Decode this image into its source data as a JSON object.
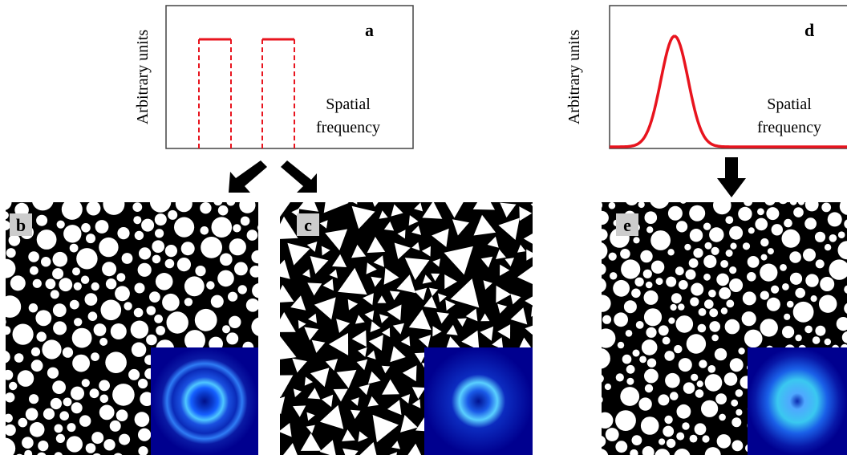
{
  "panels": {
    "a": {
      "label": "a",
      "y_label": "Arbitrary units",
      "x_label": [
        "Spatial",
        "frequency"
      ]
    },
    "b": {
      "label": "b"
    },
    "c": {
      "label": "c"
    },
    "d": {
      "label": "d",
      "y_label": "Arbitrary units",
      "x_label": [
        "Spatial",
        "frequency"
      ]
    },
    "e": {
      "label": "e"
    }
  }
}
